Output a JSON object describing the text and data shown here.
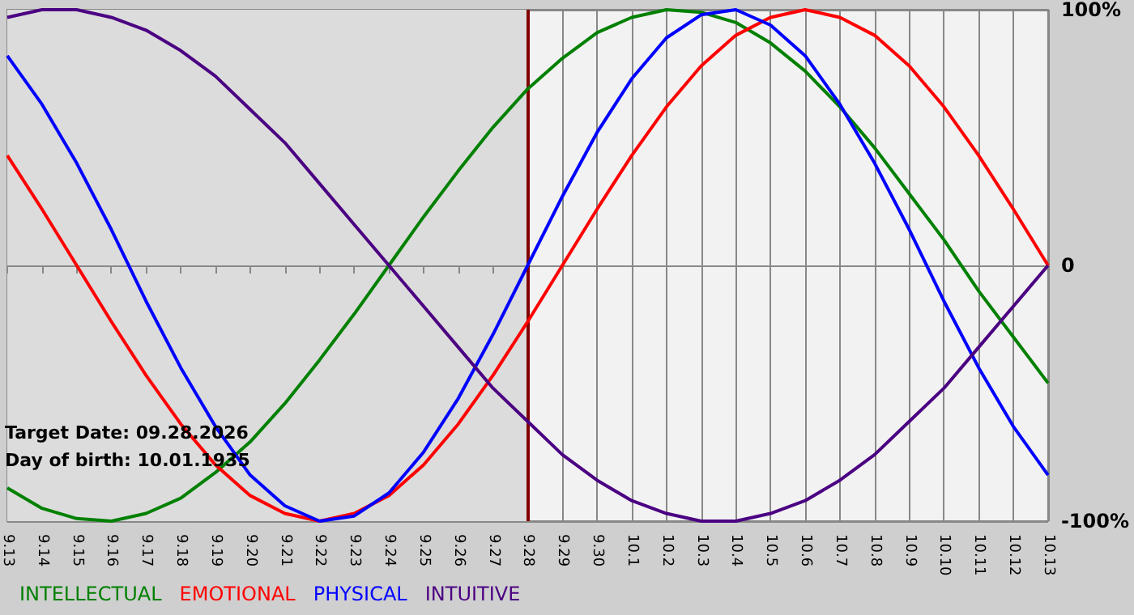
{
  "chart_data": {
    "type": "line",
    "categories": [
      "9.13",
      "9.14",
      "9.15",
      "9.16",
      "9.17",
      "9.18",
      "9.19",
      "9.20",
      "9.21",
      "9.22",
      "9.23",
      "9.24",
      "9.25",
      "9.26",
      "9.27",
      "9.28",
      "9.29",
      "9.30",
      "10.1",
      "10.2",
      "10.3",
      "10.4",
      "10.5",
      "10.6",
      "10.7",
      "10.8",
      "10.9",
      "10.10",
      "10.11",
      "10.12",
      "10.13"
    ],
    "series": [
      {
        "name": "INTELLECTUAL",
        "color": "#008000",
        "values": [
          -87,
          -95,
          -99,
          -100,
          -97,
          -91,
          -81,
          -69,
          -54,
          -37,
          -19,
          0,
          19,
          37,
          54,
          69,
          81,
          91,
          97,
          100,
          99,
          95,
          87,
          76,
          62,
          46,
          28,
          10,
          -10,
          -28,
          -46
        ]
      },
      {
        "name": "EMOTIONAL",
        "color": "#ff0000",
        "values": [
          43,
          22,
          0,
          -22,
          -43,
          -62,
          -78,
          -90,
          -97,
          -100,
          -97,
          -90,
          -78,
          -62,
          -43,
          -22,
          0,
          22,
          43,
          62,
          78,
          90,
          97,
          100,
          97,
          90,
          78,
          62,
          43,
          22,
          0
        ]
      },
      {
        "name": "PHYSICAL",
        "color": "#0000ff",
        "values": [
          82,
          63,
          40,
          14,
          -14,
          -40,
          -63,
          -82,
          -94,
          -100,
          -98,
          -89,
          -73,
          -52,
          -27,
          0,
          27,
          52,
          73,
          89,
          98,
          100,
          94,
          82,
          63,
          40,
          14,
          -14,
          -40,
          -63,
          -82
        ]
      },
      {
        "name": "INTUITIVE",
        "color": "#4b0082",
        "values": [
          97,
          100,
          100,
          97,
          92,
          84,
          74,
          61,
          48,
          32,
          16,
          0,
          -16,
          -32,
          -48,
          -61,
          -74,
          -84,
          -92,
          -97,
          -100,
          -100,
          -97,
          -92,
          -84,
          -74,
          -61,
          -48,
          -32,
          -16,
          0
        ]
      }
    ],
    "ylim": [
      -100,
      100
    ],
    "yticks": [
      {
        "value": -100,
        "label": "-100%"
      },
      0,
      {
        "value": 100,
        "label": "100%"
      }
    ],
    "ref_lines": [
      {
        "axis": "x",
        "value": "9.28",
        "color": "#800000"
      }
    ],
    "bands": [
      {
        "axis": "x",
        "from": "9.13",
        "to": "9.28",
        "color": "#dcdcdc"
      }
    ],
    "annotations": [
      "Target Date: 09.28.2026",
      "Day of birth: 10.01.1935"
    ],
    "grid": true,
    "legend": "bottom left",
    "marker": "none",
    "line_style": "solid"
  }
}
